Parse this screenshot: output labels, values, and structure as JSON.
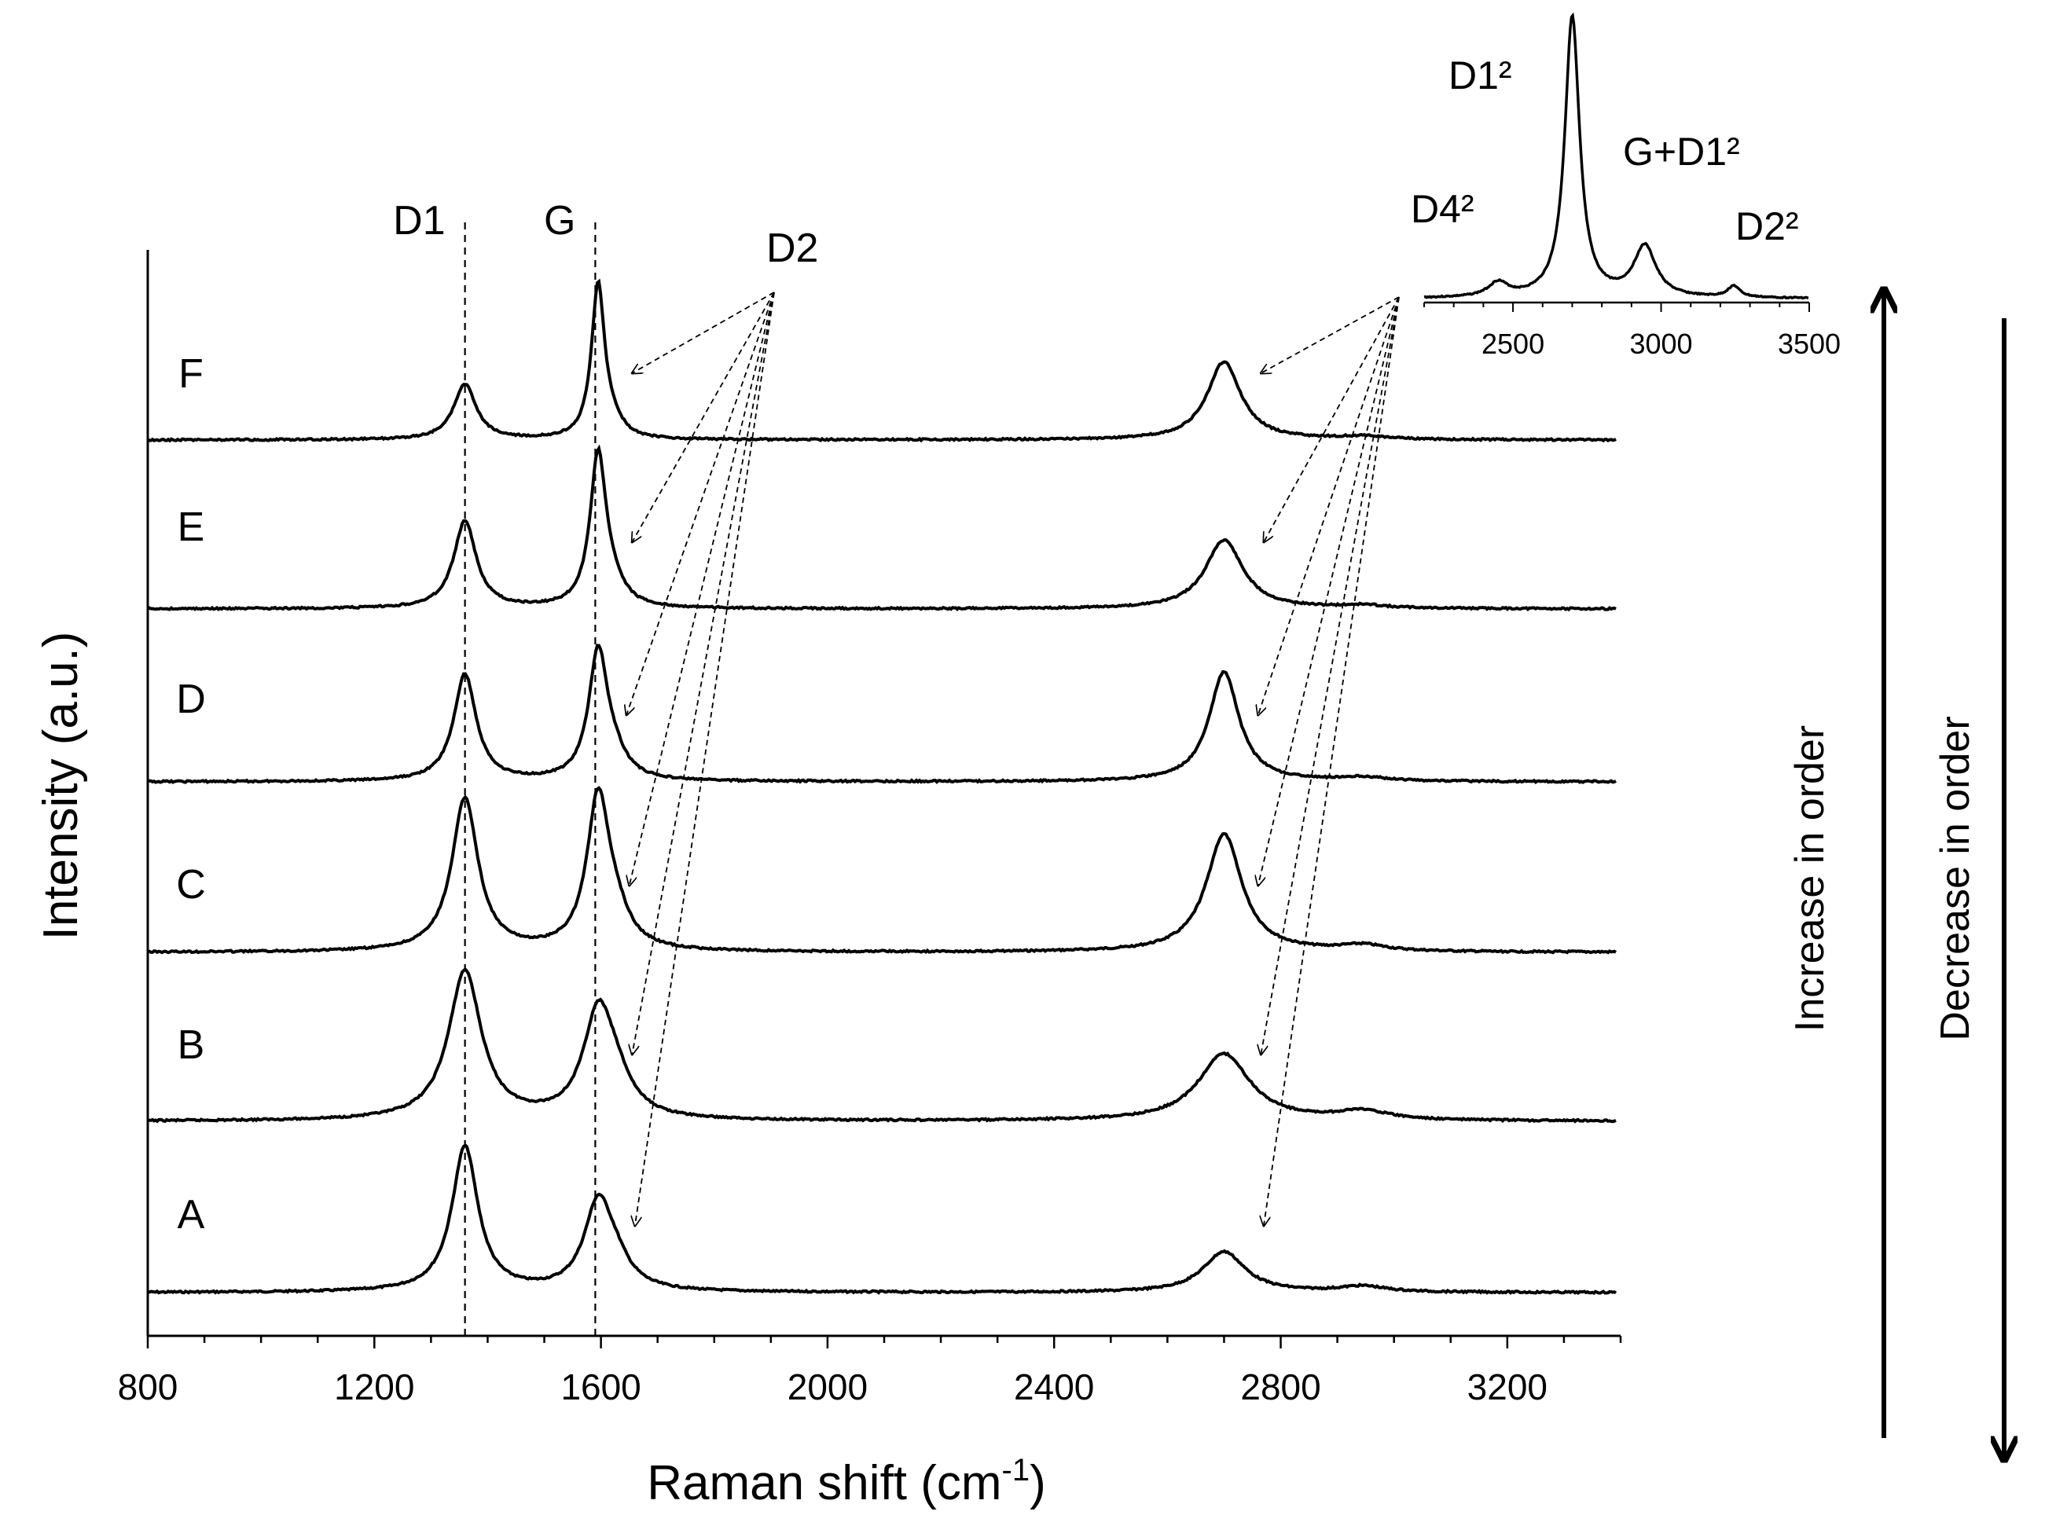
{
  "chart_data": {
    "type": "line",
    "title": "",
    "xlabel": "Raman shift (cm",
    "xlabel_sup": "-1",
    "xlabel_close": ")",
    "ylabel": "Intensity (a.u.)",
    "xlim": [
      800,
      3400
    ],
    "x_ticks": [
      800,
      1200,
      1600,
      2000,
      2400,
      2800,
      3200
    ],
    "series": [
      {
        "name": "A",
        "peaks": [
          {
            "x": 1360,
            "h": 1.0,
            "w": 28
          },
          {
            "x": 1595,
            "h": 0.58,
            "w": 30
          },
          {
            "x": 1625,
            "h": 0.15,
            "w": 32
          },
          {
            "x": 2700,
            "h": 0.28,
            "w": 45
          },
          {
            "x": 2945,
            "h": 0.04,
            "w": 50
          }
        ]
      },
      {
        "name": "B",
        "peaks": [
          {
            "x": 1360,
            "h": 1.0,
            "w": 35
          },
          {
            "x": 1595,
            "h": 0.67,
            "w": 32
          },
          {
            "x": 1625,
            "h": 0.2,
            "w": 35
          },
          {
            "x": 2700,
            "h": 0.45,
            "w": 55
          },
          {
            "x": 2945,
            "h": 0.06,
            "w": 55
          }
        ]
      },
      {
        "name": "C",
        "peaks": [
          {
            "x": 1360,
            "h": 1.0,
            "w": 28
          },
          {
            "x": 1595,
            "h": 0.97,
            "w": 24
          },
          {
            "x": 1625,
            "h": 0.18,
            "w": 30
          },
          {
            "x": 2700,
            "h": 0.77,
            "w": 38
          },
          {
            "x": 2945,
            "h": 0.04,
            "w": 50
          }
        ]
      },
      {
        "name": "D",
        "peaks": [
          {
            "x": 1360,
            "h": 0.8,
            "w": 24
          },
          {
            "x": 1595,
            "h": 0.94,
            "w": 20
          },
          {
            "x": 1622,
            "h": 0.15,
            "w": 28
          },
          {
            "x": 2700,
            "h": 0.82,
            "w": 32
          },
          {
            "x": 2945,
            "h": 0.03,
            "w": 50
          }
        ]
      },
      {
        "name": "E",
        "peaks": [
          {
            "x": 1360,
            "h": 0.57,
            "w": 24
          },
          {
            "x": 1595,
            "h": 0.98,
            "w": 17
          },
          {
            "x": 1620,
            "h": 0.12,
            "w": 25
          },
          {
            "x": 2700,
            "h": 0.45,
            "w": 40
          },
          {
            "x": 2945,
            "h": 0.02,
            "w": 50
          }
        ]
      },
      {
        "name": "F",
        "peaks": [
          {
            "x": 1360,
            "h": 0.36,
            "w": 24
          },
          {
            "x": 1595,
            "h": 1.0,
            "w": 14
          },
          {
            "x": 1620,
            "h": 0.08,
            "w": 22
          },
          {
            "x": 2700,
            "h": 0.51,
            "w": 36
          },
          {
            "x": 2945,
            "h": 0.02,
            "w": 50
          }
        ]
      }
    ],
    "reference_lines": [
      {
        "label": "D1",
        "x": 1360
      },
      {
        "label": "G",
        "x": 1590
      }
    ],
    "annotations": {
      "d2_label": "D2",
      "d2_targets_first": [
        1660,
        1655,
        1650,
        1645,
        1655,
        1655
      ],
      "d2_targets_second": [
        2770,
        2765,
        2760,
        2760,
        2770,
        2765
      ]
    },
    "inset": {
      "xlim": [
        2200,
        3500
      ],
      "x_ticks": [
        2500,
        3000,
        3500
      ],
      "peak_labels": [
        "D4²",
        "D1²",
        "G+D1²",
        "D2²"
      ],
      "peaks": [
        {
          "x": 2450,
          "h": 0.05,
          "w": 40
        },
        {
          "x": 2700,
          "h": 1.0,
          "w": 30
        },
        {
          "x": 2945,
          "h": 0.18,
          "w": 45
        },
        {
          "x": 3245,
          "h": 0.04,
          "w": 25
        }
      ]
    },
    "side_arrows": {
      "up": "Increase in order",
      "down": "Decrease in order"
    }
  }
}
